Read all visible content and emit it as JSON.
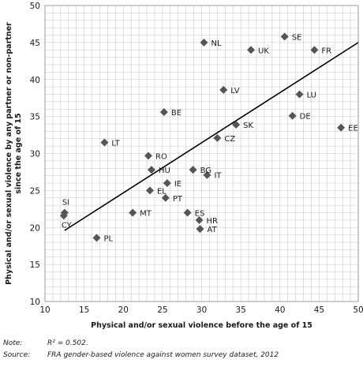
{
  "chart_data": {
    "type": "scatter",
    "title": "",
    "xlabel": "Physical and/or sexual violence before the age of 15",
    "ylabel_lines": [
      "Physical and/or sexual violence by any partner or non-partner",
      "since the age of 15"
    ],
    "xlim": [
      10,
      50
    ],
    "ylim": [
      10,
      50
    ],
    "xticks": [
      10,
      15,
      20,
      25,
      30,
      35,
      40,
      45,
      50
    ],
    "yticks": [
      10,
      15,
      20,
      25,
      30,
      35,
      40,
      45,
      50
    ],
    "grid": true,
    "marker_color": "#555555",
    "line_color": "#000000",
    "grid_color": "#c8c8c8",
    "points": [
      {
        "label": "NL",
        "x": 30.3,
        "y": 45.0
      },
      {
        "label": "SE",
        "x": 40.6,
        "y": 45.8
      },
      {
        "label": "UK",
        "x": 36.3,
        "y": 44.0
      },
      {
        "label": "FR",
        "x": 44.4,
        "y": 44.0
      },
      {
        "label": "LV",
        "x": 32.8,
        "y": 38.6
      },
      {
        "label": "LU",
        "x": 42.5,
        "y": 38.0
      },
      {
        "label": "BE",
        "x": 25.2,
        "y": 35.6
      },
      {
        "label": "DE",
        "x": 41.6,
        "y": 35.1
      },
      {
        "label": "SK",
        "x": 34.4,
        "y": 33.9
      },
      {
        "label": "EE",
        "x": 47.8,
        "y": 33.5
      },
      {
        "label": "LT",
        "x": 17.6,
        "y": 31.5
      },
      {
        "label": "CZ",
        "x": 32.0,
        "y": 32.1
      },
      {
        "label": "RO",
        "x": 23.2,
        "y": 29.7
      },
      {
        "label": "BG",
        "x": 28.9,
        "y": 27.8
      },
      {
        "label": "HU",
        "x": 23.6,
        "y": 27.8
      },
      {
        "label": "IT",
        "x": 30.7,
        "y": 27.1
      },
      {
        "label": "IE",
        "x": 25.6,
        "y": 26.0
      },
      {
        "label": "EL",
        "x": 23.4,
        "y": 25.0
      },
      {
        "label": "PT",
        "x": 25.4,
        "y": 24.0
      },
      {
        "label": "SI",
        "x": 12.5,
        "y": 22.0
      },
      {
        "label": "CY",
        "x": 12.4,
        "y": 21.6
      },
      {
        "label": "MT",
        "x": 21.2,
        "y": 22.0
      },
      {
        "label": "ES",
        "x": 28.2,
        "y": 22.0
      },
      {
        "label": "HR",
        "x": 29.7,
        "y": 21.0
      },
      {
        "label": "AT",
        "x": 29.8,
        "y": 19.8
      },
      {
        "label": "PL",
        "x": 16.6,
        "y": 18.6
      }
    ],
    "trendline": {
      "x": [
        12.5,
        50
      ],
      "y": [
        19.6,
        45.0
      ]
    }
  },
  "notes": {
    "note_key": "Note:",
    "note_text": "R² = 0.502.",
    "source_key": "Source:",
    "source_text": "FRA gender-based violence against women survey dataset, 2012"
  }
}
